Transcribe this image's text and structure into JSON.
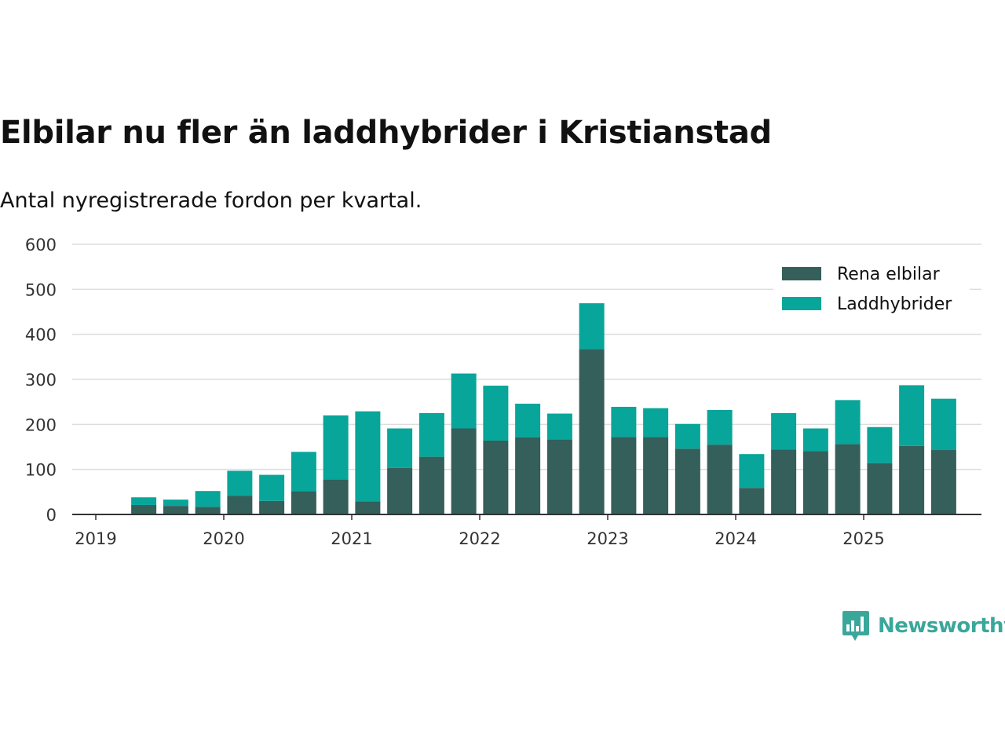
{
  "header": {
    "title": "Elbilar nu fler än laddhybrider i Kristianstad",
    "subtitle": "Antal nyregistrerade fordon per kvartal."
  },
  "logo": {
    "text": "Newsworthy",
    "icon": "bar-chart-speech-bubble-icon"
  },
  "colors": {
    "rena_elbilar": "#345f5a",
    "laddhybrider": "#08a59a",
    "grid": "#dddddd",
    "axis": "#333333",
    "logo": "#3aa79a"
  },
  "chart_data": {
    "type": "bar",
    "stacked": true,
    "title": "Elbilar nu fler än laddhybrider i Kristianstad",
    "subtitle": "Antal nyregistrerade fordon per kvartal.",
    "xlabel": "",
    "ylabel": "",
    "ylim": [
      0,
      600
    ],
    "yticks": [
      0,
      100,
      200,
      300,
      400,
      500,
      600
    ],
    "xlim": [
      2019.0,
      2026.0
    ],
    "xticks": [
      "2019",
      "2020",
      "2021",
      "2022",
      "2023",
      "2024",
      "2025"
    ],
    "grid": true,
    "legend_position": "top-right",
    "x": [
      "2019-Q2",
      "2019-Q3",
      "2019-Q4",
      "2020-Q1",
      "2020-Q2",
      "2020-Q3",
      "2020-Q4",
      "2021-Q1",
      "2021-Q2",
      "2021-Q3",
      "2021-Q4",
      "2022-Q1",
      "2022-Q2",
      "2022-Q3",
      "2022-Q4",
      "2023-Q1",
      "2023-Q2",
      "2023-Q3",
      "2023-Q4",
      "2024-Q1",
      "2024-Q2",
      "2024-Q3",
      "2024-Q4",
      "2025-Q1",
      "2025-Q2",
      "2025-Q3"
    ],
    "x_numeric": [
      2019.375,
      2019.625,
      2019.875,
      2020.125,
      2020.375,
      2020.625,
      2020.875,
      2021.125,
      2021.375,
      2021.625,
      2021.875,
      2022.125,
      2022.375,
      2022.625,
      2022.875,
      2023.125,
      2023.375,
      2023.625,
      2023.875,
      2024.125,
      2024.375,
      2024.625,
      2024.875,
      2025.125,
      2025.375,
      2025.625
    ],
    "series": [
      {
        "name": "Rena elbilar",
        "color": "#345f5a",
        "values": [
          21,
          19,
          17,
          41,
          30,
          52,
          78,
          29,
          103,
          128,
          191,
          164,
          171,
          167,
          367,
          172,
          172,
          146,
          155,
          59,
          144,
          141,
          156,
          114,
          152,
          143
        ]
      },
      {
        "name": "Laddhybrider",
        "color": "#08a59a",
        "values": [
          17,
          14,
          35,
          56,
          58,
          87,
          142,
          200,
          88,
          97,
          122,
          122,
          75,
          57,
          102,
          67,
          64,
          55,
          77,
          75,
          81,
          50,
          98,
          80,
          135,
          114
        ]
      }
    ]
  }
}
